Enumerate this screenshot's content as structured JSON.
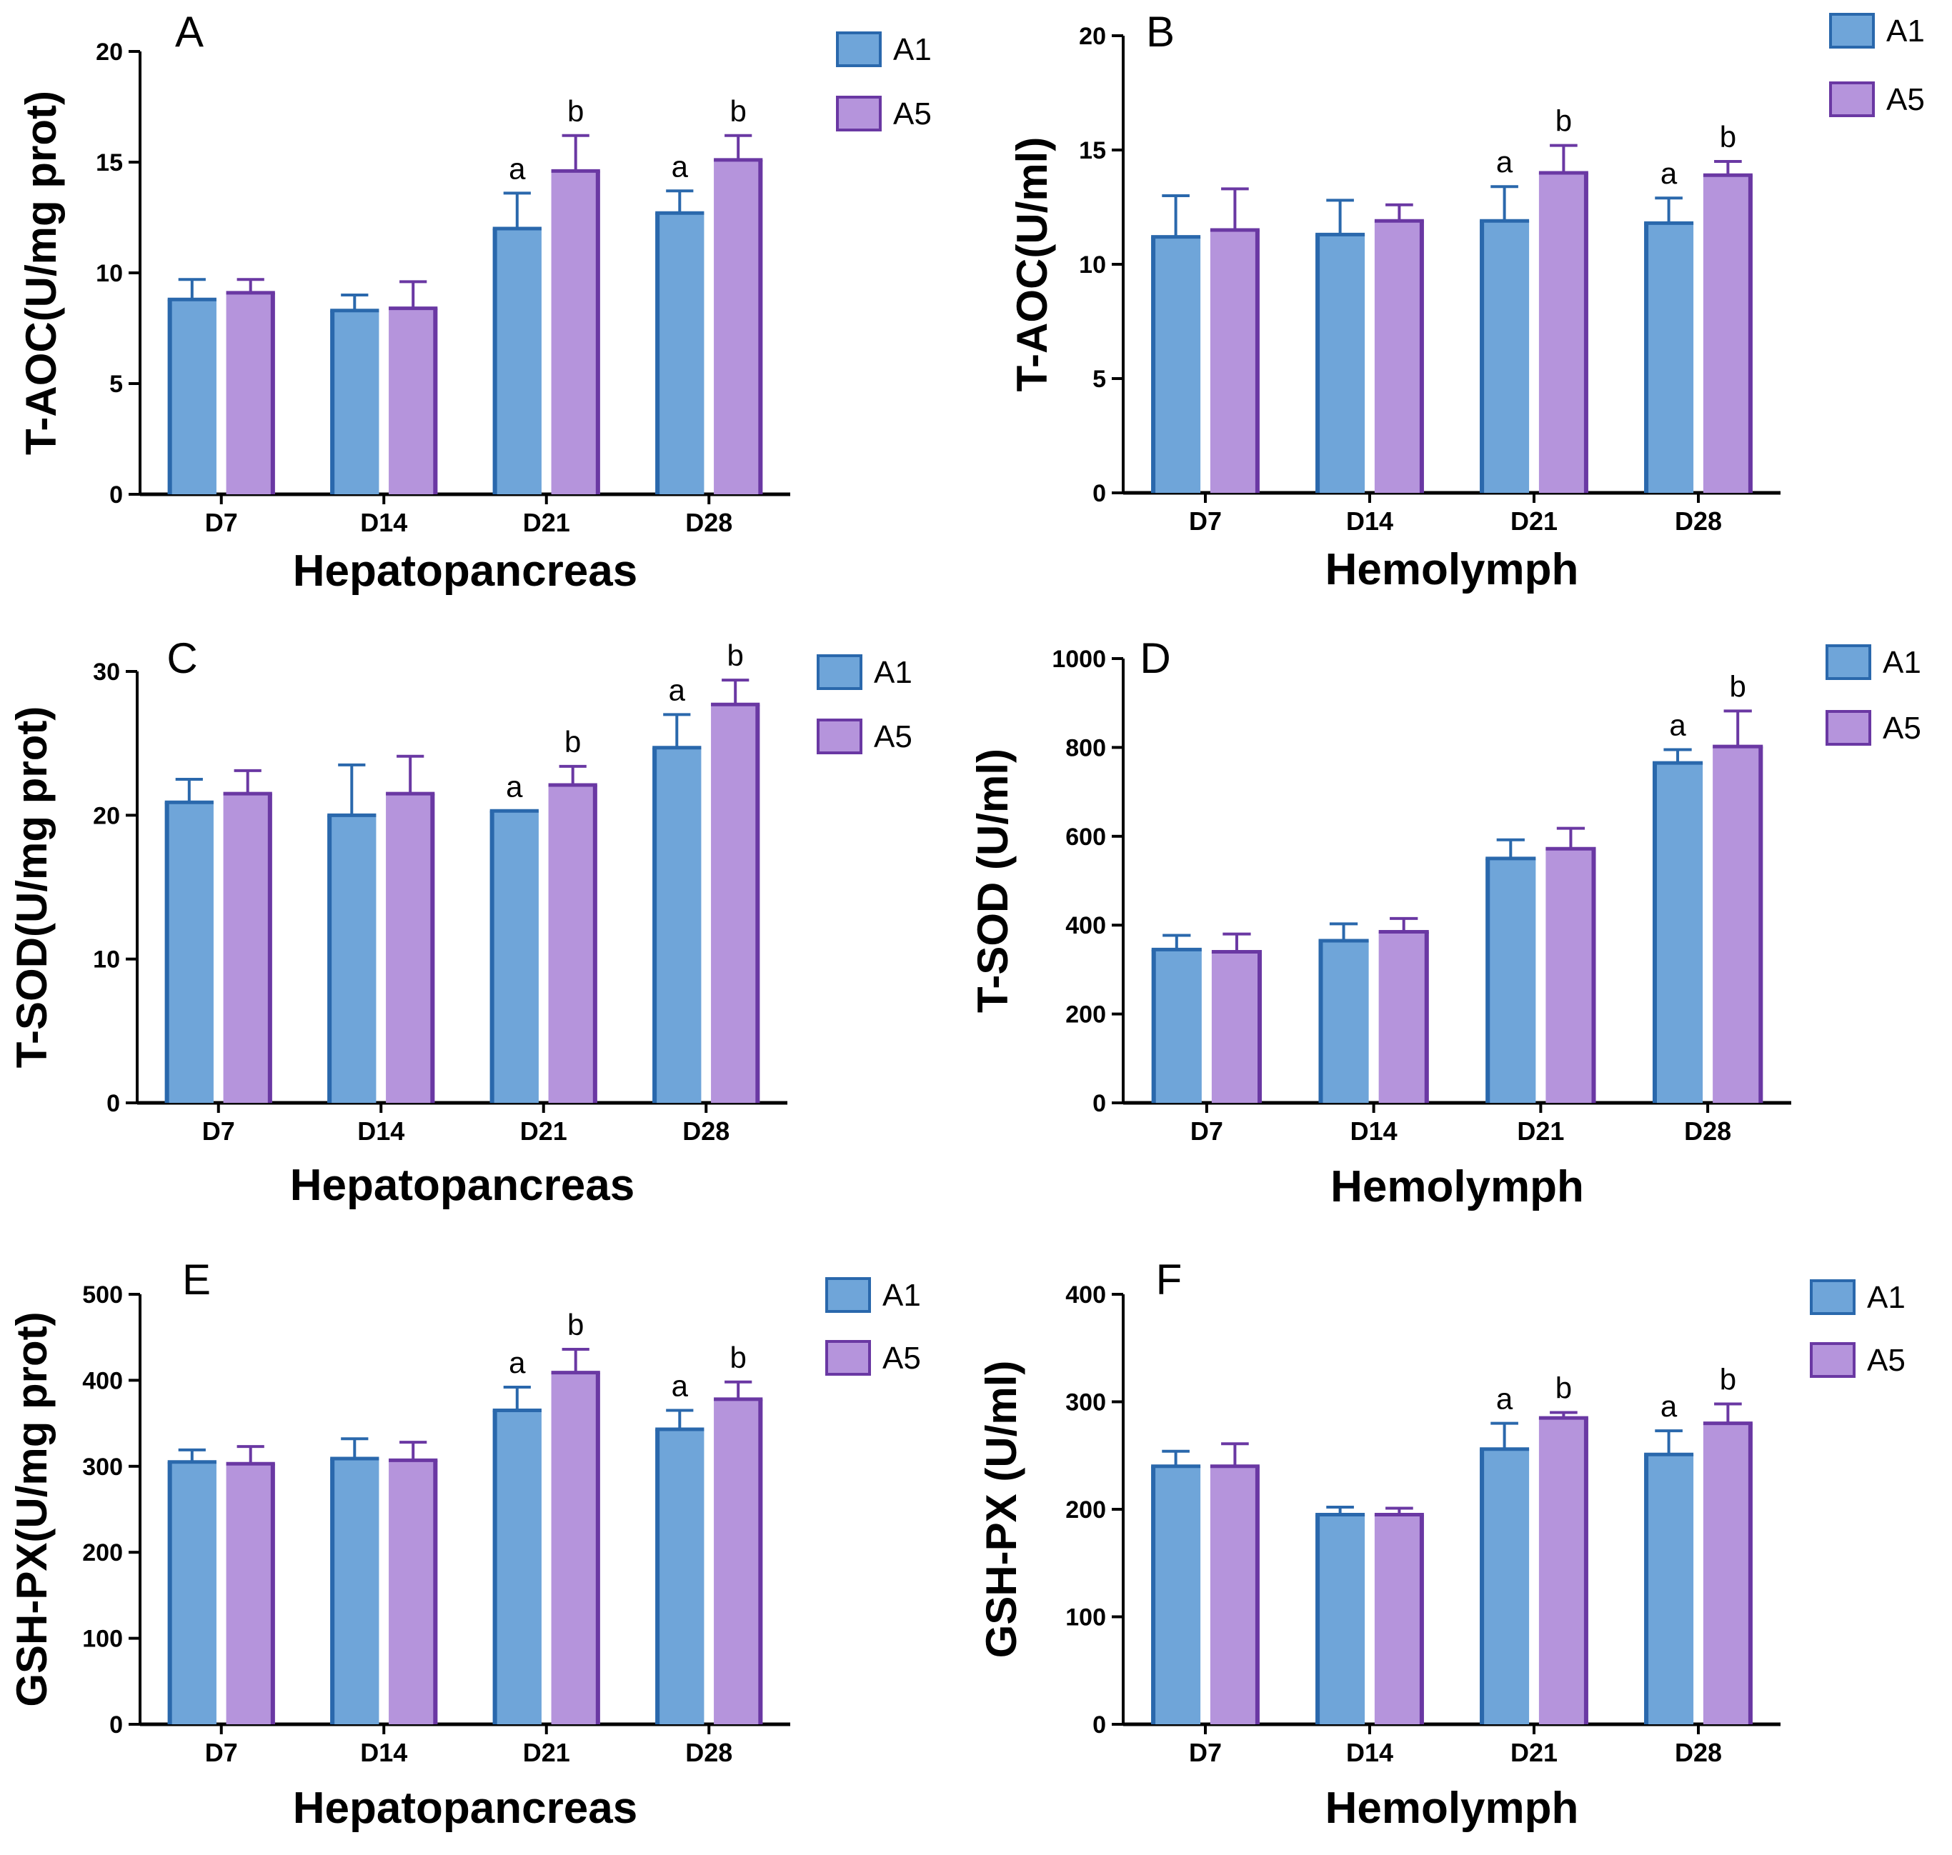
{
  "colors": {
    "A1_fill": "#6fa5d9",
    "A1_edge": "#2a68ac",
    "A5_fill": "#b594dc",
    "A5_edge": "#6a38a3",
    "axis": "#000000"
  },
  "chart_data": [
    {
      "panel": "A",
      "type": "bar",
      "ylabel": "T-AOC(U/mg prot)",
      "xlabel": "Hepatopancreas",
      "categories": [
        "D7",
        "D14",
        "D21",
        "D28"
      ],
      "ylim": [
        0,
        20
      ],
      "yticks": [
        0,
        5,
        10,
        15,
        20
      ],
      "series": [
        {
          "name": "A1",
          "values": [
            8.8,
            8.3,
            12.0,
            12.7
          ],
          "errors": [
            0.9,
            0.7,
            1.6,
            1.0
          ],
          "labels": [
            "",
            "",
            "a",
            "a"
          ]
        },
        {
          "name": "A5",
          "values": [
            9.1,
            8.4,
            14.6,
            15.1
          ],
          "errors": [
            0.6,
            1.2,
            1.6,
            1.1
          ],
          "labels": [
            "",
            "",
            "b",
            "b"
          ]
        }
      ]
    },
    {
      "panel": "B",
      "type": "bar",
      "ylabel": "T-AOC(U/ml)",
      "xlabel": "Hemolymph",
      "categories": [
        "D7",
        "D14",
        "D21",
        "D28"
      ],
      "ylim": [
        0,
        20
      ],
      "yticks": [
        0,
        5,
        10,
        15,
        20
      ],
      "series": [
        {
          "name": "A1",
          "values": [
            11.2,
            11.3,
            11.9,
            11.8
          ],
          "errors": [
            1.8,
            1.5,
            1.5,
            1.1
          ],
          "labels": [
            "",
            "",
            "a",
            "a"
          ]
        },
        {
          "name": "A5",
          "values": [
            11.5,
            11.9,
            14.0,
            13.9
          ],
          "errors": [
            1.8,
            0.7,
            1.2,
            0.6
          ],
          "labels": [
            "",
            "",
            "b",
            "b"
          ]
        }
      ]
    },
    {
      "panel": "C",
      "type": "bar",
      "ylabel": "T-SOD(U/mg prot)",
      "xlabel": "Hepatopancreas",
      "categories": [
        "D7",
        "D14",
        "D21",
        "D28"
      ],
      "ylim": [
        0,
        30
      ],
      "yticks": [
        0,
        10,
        20,
        30
      ],
      "series": [
        {
          "name": "A1",
          "values": [
            20.9,
            20.0,
            20.3,
            24.7
          ],
          "errors": [
            1.6,
            3.5,
            0.0,
            2.3
          ],
          "labels": [
            "",
            "",
            "a",
            "a"
          ]
        },
        {
          "name": "A5",
          "values": [
            21.5,
            21.5,
            22.1,
            27.7
          ],
          "errors": [
            1.6,
            2.6,
            1.3,
            1.7
          ],
          "labels": [
            "",
            "",
            "b",
            "b"
          ]
        }
      ]
    },
    {
      "panel": "D",
      "type": "bar",
      "ylabel": "T-SOD (U/ml)",
      "xlabel": "Hemolymph",
      "categories": [
        "D7",
        "D14",
        "D21",
        "D28"
      ],
      "ylim": [
        0,
        1000
      ],
      "yticks": [
        0,
        200,
        400,
        600,
        800,
        1000
      ],
      "series": [
        {
          "name": "A1",
          "values": [
            345,
            365,
            550,
            765
          ],
          "errors": [
            32,
            38,
            42,
            30
          ],
          "labels": [
            "",
            "",
            "",
            "a"
          ]
        },
        {
          "name": "A5",
          "values": [
            340,
            385,
            572,
            802
          ],
          "errors": [
            40,
            30,
            46,
            80
          ],
          "labels": [
            "",
            "",
            "",
            "b"
          ]
        }
      ]
    },
    {
      "panel": "E",
      "type": "bar",
      "ylabel": "GSH-PX(U/mg prot)",
      "xlabel": "Hepatopancreas",
      "categories": [
        "D7",
        "D14",
        "D21",
        "D28"
      ],
      "ylim": [
        0,
        500
      ],
      "yticks": [
        0,
        100,
        200,
        300,
        400,
        500
      ],
      "series": [
        {
          "name": "A1",
          "values": [
            305,
            309,
            365,
            343
          ],
          "errors": [
            14,
            23,
            27,
            22
          ],
          "labels": [
            "",
            "",
            "a",
            "a"
          ]
        },
        {
          "name": "A5",
          "values": [
            303,
            307,
            409,
            378
          ],
          "errors": [
            20,
            21,
            27,
            20
          ],
          "labels": [
            "",
            "",
            "b",
            "b"
          ]
        }
      ]
    },
    {
      "panel": "F",
      "type": "bar",
      "ylabel": "GSH-PX (U/ml)",
      "xlabel": "Hemolymph",
      "categories": [
        "D7",
        "D14",
        "D21",
        "D28"
      ],
      "ylim": [
        0,
        400
      ],
      "yticks": [
        0,
        100,
        200,
        300,
        400
      ],
      "series": [
        {
          "name": "A1",
          "values": [
            240,
            195,
            256,
            251
          ],
          "errors": [
            14,
            7,
            24,
            22
          ],
          "labels": [
            "",
            "",
            "a",
            "a"
          ]
        },
        {
          "name": "A5",
          "values": [
            240,
            195,
            285,
            280
          ],
          "errors": [
            21,
            6,
            5,
            18
          ],
          "labels": [
            "",
            "",
            "b",
            "b"
          ]
        }
      ]
    }
  ]
}
